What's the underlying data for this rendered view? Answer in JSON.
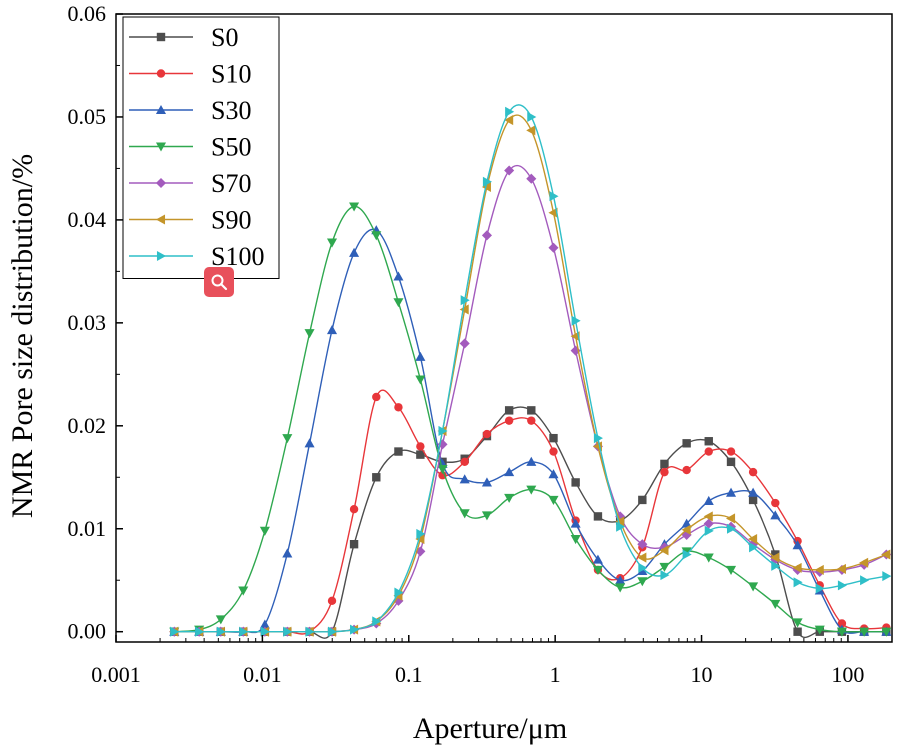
{
  "chart_data": {
    "type": "line",
    "xscale": "log",
    "xlabel": "Aperture/μm",
    "ylabel": "NMR Pore size distribution/%",
    "xlim": [
      0.001,
      200
    ],
    "ylim": [
      -0.001,
      0.06
    ],
    "xticks": [
      0.001,
      0.01,
      0.1,
      1,
      10,
      100
    ],
    "xtick_labels": [
      "0.001",
      "0.01",
      "0.1",
      "1",
      "10",
      "100"
    ],
    "yticks": [
      0,
      0.01,
      0.02,
      0.03,
      0.04,
      0.05,
      0.06
    ],
    "ytick_labels": [
      "0.00",
      "0.01",
      "0.02",
      "0.03",
      "0.04",
      "0.05",
      "0.06"
    ],
    "legend_position": "top-left",
    "x": [
      0.0025,
      0.0037,
      0.0052,
      0.0074,
      0.0104,
      0.0148,
      0.021,
      0.0299,
      0.0423,
      0.06,
      0.085,
      0.12,
      0.17,
      0.241,
      0.342,
      0.485,
      0.687,
      0.974,
      1.38,
      1.96,
      2.78,
      3.94,
      5.58,
      7.91,
      11.2,
      15.9,
      22.5,
      31.9,
      45.3,
      64.2,
      91,
      129,
      183
    ],
    "series": [
      {
        "name": "S0",
        "color": "#4d4d4d",
        "marker": "square",
        "values": [
          0,
          0,
          0,
          0,
          0,
          0,
          0,
          0,
          0.0085,
          0.015,
          0.0175,
          0.0172,
          0.0165,
          0.0168,
          0.019,
          0.0215,
          0.0215,
          0.0188,
          0.0145,
          0.0112,
          0.0108,
          0.0128,
          0.0163,
          0.0183,
          0.0185,
          0.0165,
          0.0128,
          0.0075,
          0,
          0,
          0,
          0,
          0
        ]
      },
      {
        "name": "S10",
        "color": "#e8363a",
        "marker": "circle",
        "values": [
          0,
          0,
          0,
          0,
          0,
          0,
          0,
          0.003,
          0.0119,
          0.0228,
          0.0218,
          0.018,
          0.0152,
          0.0165,
          0.0192,
          0.0205,
          0.0205,
          0.0175,
          0.0108,
          0.006,
          0.0052,
          0.0082,
          0.0155,
          0.0157,
          0.0175,
          0.0175,
          0.0155,
          0.0125,
          0.0088,
          0.0045,
          0.0008,
          0.0003,
          0.0004
        ]
      },
      {
        "name": "S30",
        "color": "#2f5fb8",
        "marker": "triangle-up",
        "values": [
          0,
          0,
          0,
          0,
          0.0007,
          0.0076,
          0.0183,
          0.0293,
          0.0368,
          0.039,
          0.0345,
          0.0267,
          0.0163,
          0.0148,
          0.0145,
          0.0155,
          0.0165,
          0.0153,
          0.0105,
          0.007,
          0.005,
          0.0059,
          0.0085,
          0.0105,
          0.0127,
          0.0135,
          0.0135,
          0.0113,
          0.0084,
          0.004,
          0.0002,
          0,
          0
        ]
      },
      {
        "name": "S50",
        "color": "#2fa84f",
        "marker": "triangle-down",
        "values": [
          0,
          0.0002,
          0.0012,
          0.004,
          0.0098,
          0.0188,
          0.029,
          0.0378,
          0.0413,
          0.0385,
          0.032,
          0.0245,
          0.0158,
          0.0115,
          0.0113,
          0.013,
          0.0138,
          0.0128,
          0.009,
          0.006,
          0.0043,
          0.0049,
          0.0063,
          0.0078,
          0.0072,
          0.006,
          0.0044,
          0.0027,
          0.0009,
          0.0002,
          0,
          0,
          0
        ]
      },
      {
        "name": "S70",
        "color": "#a35bbd",
        "marker": "diamond",
        "values": [
          0,
          0,
          0,
          0,
          0,
          0,
          0,
          0,
          0.0002,
          0.0008,
          0.003,
          0.0078,
          0.0182,
          0.028,
          0.0385,
          0.0448,
          0.044,
          0.0373,
          0.0273,
          0.018,
          0.0112,
          0.0085,
          0.0082,
          0.0094,
          0.0105,
          0.0102,
          0.0085,
          0.007,
          0.006,
          0.0058,
          0.006,
          0.0065,
          0.0075
        ]
      },
      {
        "name": "S90",
        "color": "#c4952a",
        "marker": "triangle-left",
        "values": [
          0,
          0,
          0,
          0,
          0,
          0,
          0,
          0,
          0.0002,
          0.001,
          0.0035,
          0.009,
          0.0195,
          0.0313,
          0.0432,
          0.0497,
          0.0487,
          0.0407,
          0.0287,
          0.018,
          0.0107,
          0.0072,
          0.0079,
          0.0099,
          0.0112,
          0.011,
          0.009,
          0.0072,
          0.0062,
          0.006,
          0.0061,
          0.0067,
          0.0075
        ]
      },
      {
        "name": "S100",
        "color": "#2fbfc8",
        "marker": "triangle-right",
        "values": [
          0,
          0,
          0,
          0,
          0,
          0,
          0,
          0,
          0.0002,
          0.001,
          0.0038,
          0.0095,
          0.0195,
          0.0322,
          0.0437,
          0.0505,
          0.05,
          0.0423,
          0.0302,
          0.0188,
          0.0102,
          0.0062,
          0.0055,
          0.0075,
          0.0098,
          0.01,
          0.0082,
          0.0064,
          0.0048,
          0.0042,
          0.0045,
          0.005,
          0.0054
        ]
      }
    ]
  },
  "ui": {
    "zoom_icon": "magnifier-icon"
  }
}
